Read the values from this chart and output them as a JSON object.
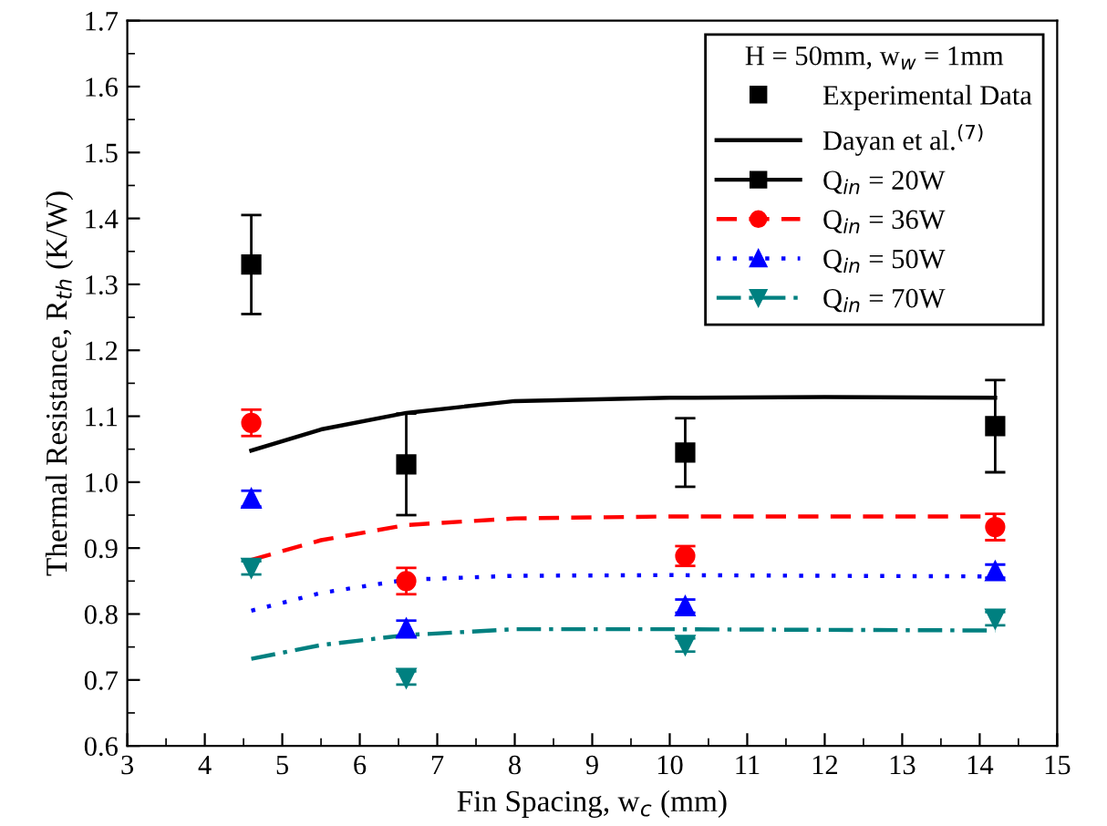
{
  "chart_data": {
    "type": "scatter",
    "xlabel": "Fin Spacing, w$_{c}$ (mm)",
    "ylabel": "Thermal Resistance, R$_{th}$ (K/W)",
    "legend_title": "H = 50mm, w$_{w}$ = 1mm",
    "annotations": [
      "Experimental Data",
      "Dayan et al.$^{(7)}$"
    ],
    "xlim": [
      3,
      15
    ],
    "xticks": [
      3,
      4,
      5,
      6,
      7,
      8,
      9,
      10,
      11,
      12,
      13,
      14,
      15
    ],
    "ylim": [
      0.6,
      1.7
    ],
    "yticks": [
      0.6,
      0.7,
      0.8,
      0.9,
      {
        "value": 1.0,
        "label": "1.0"
      },
      1.1,
      1.2,
      1.3,
      1.4,
      1.5,
      1.6,
      1.7
    ],
    "grid": false,
    "legend": "top right",
    "x": [
      4.6,
      6.6,
      10.2,
      14.2
    ],
    "series": [
      {
        "name": "Q$_{in}$ = 20W",
        "color": "#000000",
        "marker": "square",
        "values": [
          1.33,
          1.027,
          1.045,
          1.085
        ],
        "errors": [
          0.075,
          0.077,
          0.052,
          0.07
        ]
      },
      {
        "name": "Q$_{in}$ = 36W",
        "color": "#ff0000",
        "marker": "circle",
        "values": [
          1.09,
          0.85,
          0.888,
          0.932
        ],
        "errors": [
          0.02,
          0.02,
          0.015,
          0.02
        ]
      },
      {
        "name": "Q$_{in}$ = 50W",
        "color": "#0000ff",
        "marker": "triangle",
        "values": [
          0.975,
          0.778,
          0.812,
          0.865
        ],
        "errors": [
          0.012,
          0.012,
          0.01,
          0.01
        ]
      },
      {
        "name": "Q$_{in}$ = 70W",
        "color": "#008080",
        "marker": "triangle_down",
        "values": [
          0.87,
          0.703,
          0.753,
          0.793
        ],
        "errors": [
          0.01,
          0.01,
          0.01,
          0.01
        ]
      },
      {
        "type": "line",
        "color": "#000000",
        "line_style": "solid",
        "x": [
          4.6,
          5.5,
          6.6,
          8,
          10,
          12,
          14.2
        ],
        "values": [
          1.048,
          1.08,
          1.105,
          1.123,
          1.128,
          1.129,
          1.128
        ]
      },
      {
        "type": "line",
        "color": "#ff0000",
        "line_style": "dashed",
        "x": [
          4.6,
          5.5,
          6.6,
          8,
          10,
          12,
          14.2
        ],
        "values": [
          0.882,
          0.912,
          0.935,
          0.945,
          0.948,
          0.948,
          0.948
        ]
      },
      {
        "type": "line",
        "color": "#0000ff",
        "line_style": "dotted",
        "x": [
          4.6,
          5.5,
          6.6,
          8,
          10,
          12,
          14.2
        ],
        "values": [
          0.805,
          0.832,
          0.852,
          0.858,
          0.859,
          0.858,
          0.857
        ]
      },
      {
        "type": "line",
        "color": "#008080",
        "line_style": "dashdot",
        "x": [
          4.6,
          5.5,
          6.6,
          8,
          10,
          12,
          14.2
        ],
        "values": [
          0.732,
          0.753,
          0.768,
          0.777,
          0.777,
          0.776,
          0.775
        ]
      }
    ]
  }
}
